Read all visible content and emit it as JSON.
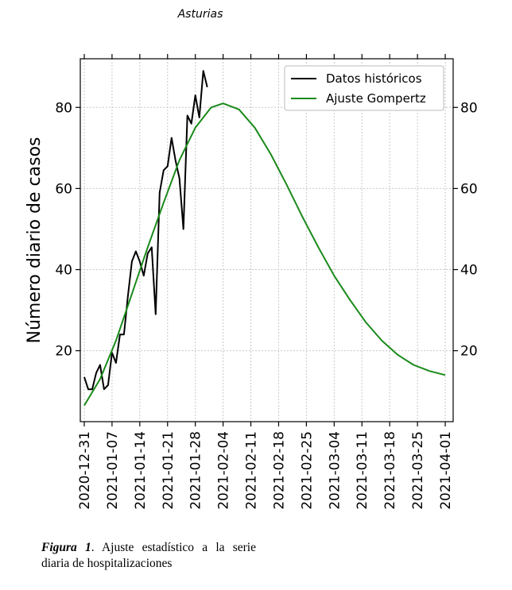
{
  "chart_data": {
    "type": "line",
    "title": "Asturias",
    "xlabel": "",
    "ylabel": "Número diario de casos",
    "grid": true,
    "legend_position": "top-right",
    "x_ticks": [
      "2020-12-31",
      "2021-01-07",
      "2021-01-14",
      "2021-01-21",
      "2021-01-28",
      "2021-02-04",
      "2021-02-11",
      "2021-02-18",
      "2021-02-25",
      "2021-03-04",
      "2021-03-11",
      "2021-03-18",
      "2021-03-25",
      "2021-04-01"
    ],
    "y_ticks": [
      20,
      40,
      60,
      80
    ],
    "xlim": [
      "2020-12-30",
      "2021-04-03"
    ],
    "ylim": [
      2.5,
      92
    ],
    "series": [
      {
        "name": "Datos históricos",
        "color": "#000000",
        "x": [
          "2020-12-31",
          "2021-01-01",
          "2021-01-02",
          "2021-01-03",
          "2021-01-04",
          "2021-01-05",
          "2021-01-06",
          "2021-01-07",
          "2021-01-08",
          "2021-01-09",
          "2021-01-10",
          "2021-01-11",
          "2021-01-12",
          "2021-01-13",
          "2021-01-14",
          "2021-01-15",
          "2021-01-16",
          "2021-01-17",
          "2021-01-18",
          "2021-01-19",
          "2021-01-20",
          "2021-01-21",
          "2021-01-22",
          "2021-01-23",
          "2021-01-24",
          "2021-01-25",
          "2021-01-26",
          "2021-01-27",
          "2021-01-28",
          "2021-01-29",
          "2021-01-30",
          "2021-01-31"
        ],
        "values": [
          13.5,
          10.5,
          10.5,
          14.5,
          16.5,
          10.5,
          11.5,
          19.5,
          17.0,
          24.0,
          24.0,
          33.5,
          42.0,
          44.5,
          42.0,
          38.5,
          44.0,
          45.5,
          29.0,
          59.0,
          64.5,
          65.5,
          72.5,
          67.0,
          62.5,
          50.0,
          78.0,
          76.0,
          83.0,
          77.5,
          89.0,
          85.0
        ]
      },
      {
        "name": "Ajuste Gompertz",
        "color": "#1a8a1a",
        "x": [
          "2020-12-31",
          "2021-01-04",
          "2021-01-08",
          "2021-01-12",
          "2021-01-16",
          "2021-01-20",
          "2021-01-24",
          "2021-01-28",
          "2021-02-01",
          "2021-02-04",
          "2021-02-08",
          "2021-02-12",
          "2021-02-16",
          "2021-02-20",
          "2021-02-24",
          "2021-02-28",
          "2021-03-04",
          "2021-03-08",
          "2021-03-12",
          "2021-03-16",
          "2021-03-20",
          "2021-03-24",
          "2021-03-28",
          "2021-04-01"
        ],
        "values": [
          6.5,
          13.0,
          22.5,
          34.0,
          45.5,
          56.5,
          67.0,
          75.0,
          80.0,
          81.0,
          79.5,
          75.0,
          68.5,
          61.0,
          53.0,
          45.5,
          38.5,
          32.5,
          27.0,
          22.5,
          19.0,
          16.5,
          15.0,
          14.0
        ]
      }
    ]
  },
  "caption": {
    "label": "Figura 1",
    "text": ". Ajuste estadístico a la serie diaria de hospitalizaciones"
  }
}
